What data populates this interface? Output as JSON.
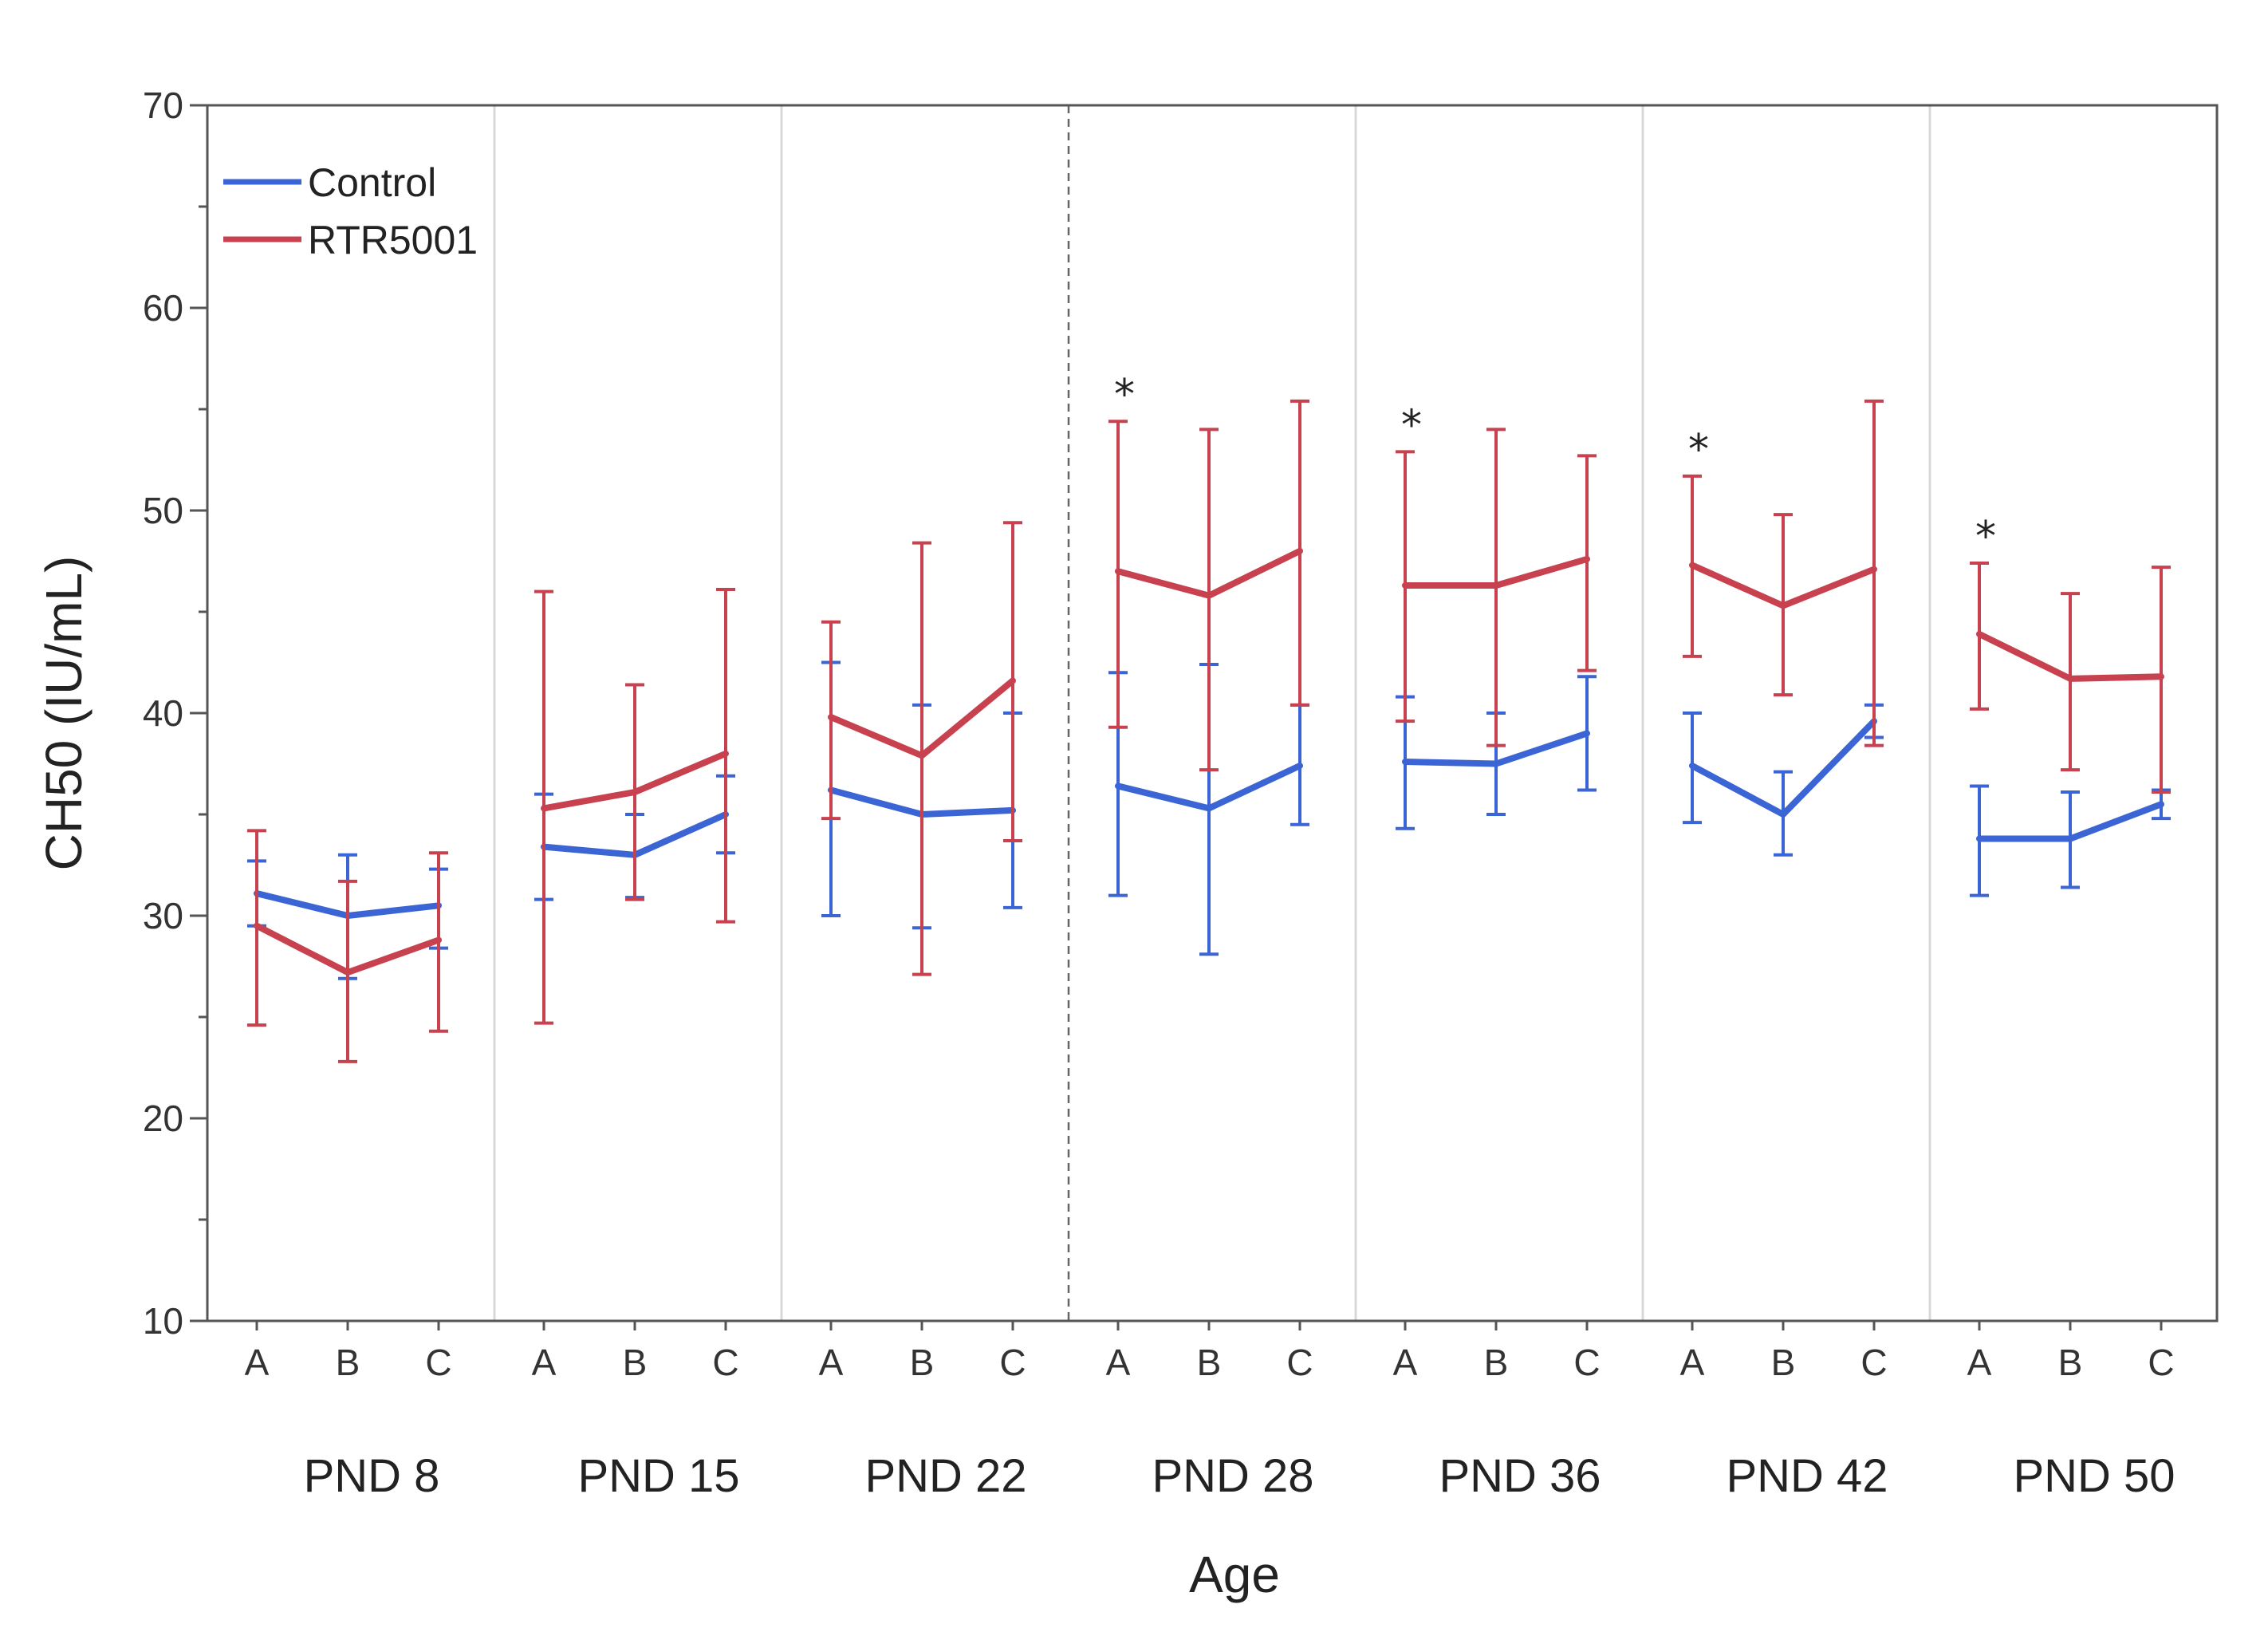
{
  "chart_data": {
    "type": "line",
    "title": "",
    "xlabel": "Age",
    "ylabel": "CH50 (IU/mL)",
    "ylim": [
      10,
      70
    ],
    "yticks": [
      10,
      20,
      30,
      40,
      50,
      60,
      70
    ],
    "grid": false,
    "legend_position": "top-left",
    "groups": [
      "PND 8",
      "PND 15",
      "PND 22",
      "PND 28",
      "PND 36",
      "PND 42",
      "PND 50"
    ],
    "subcategories": [
      "A",
      "B",
      "C"
    ],
    "significance_marker": "*",
    "significant_groups": [
      "PND 28",
      "PND 36",
      "PND 42",
      "PND 50"
    ],
    "series": [
      {
        "name": "Control",
        "color": "#3b65d4",
        "values": [
          [
            31.1,
            30.0,
            30.5
          ],
          [
            33.4,
            33.0,
            35.0
          ],
          [
            36.2,
            35.0,
            35.2
          ],
          [
            36.4,
            35.3,
            37.4
          ],
          [
            37.6,
            37.5,
            39.0
          ],
          [
            37.4,
            35.0,
            39.6
          ],
          [
            33.8,
            33.8,
            35.5
          ]
        ],
        "err_low": [
          [
            29.5,
            26.9,
            28.4
          ],
          [
            30.8,
            30.9,
            33.1
          ],
          [
            30.0,
            29.4,
            30.4
          ],
          [
            31.0,
            28.1,
            34.5
          ],
          [
            34.3,
            35.0,
            36.2
          ],
          [
            34.6,
            33.0,
            38.8
          ],
          [
            31.0,
            31.4,
            34.8
          ]
        ],
        "err_high": [
          [
            32.7,
            33.0,
            32.3
          ],
          [
            36.0,
            35.0,
            36.9
          ],
          [
            42.5,
            40.4,
            40.0
          ],
          [
            42.0,
            42.4,
            40.4
          ],
          [
            40.8,
            40.0,
            41.8
          ],
          [
            40.0,
            37.1,
            40.4
          ],
          [
            36.4,
            36.1,
            36.2
          ]
        ]
      },
      {
        "name": "RTR5001",
        "color": "#c8414f",
        "values": [
          [
            29.5,
            27.2,
            28.8
          ],
          [
            35.3,
            36.1,
            38.0
          ],
          [
            39.8,
            37.9,
            41.6
          ],
          [
            47.0,
            45.8,
            48.0
          ],
          [
            46.3,
            46.3,
            47.6
          ],
          [
            47.3,
            45.3,
            47.1
          ],
          [
            43.9,
            41.7,
            41.8
          ]
        ],
        "err_low": [
          [
            24.6,
            22.8,
            24.3
          ],
          [
            24.7,
            30.8,
            29.7
          ],
          [
            34.8,
            27.1,
            33.7
          ],
          [
            39.3,
            37.2,
            40.4
          ],
          [
            39.6,
            38.4,
            42.1
          ],
          [
            42.8,
            40.9,
            38.4
          ],
          [
            40.2,
            37.2,
            36.1
          ]
        ],
        "err_high": [
          [
            34.2,
            31.7,
            33.1
          ],
          [
            46.0,
            41.4,
            46.1
          ],
          [
            44.5,
            48.4,
            49.4
          ],
          [
            54.4,
            54.0,
            55.4
          ],
          [
            52.9,
            54.0,
            52.7
          ],
          [
            51.7,
            49.8,
            55.4
          ],
          [
            47.4,
            45.9,
            47.2
          ]
        ]
      }
    ]
  }
}
